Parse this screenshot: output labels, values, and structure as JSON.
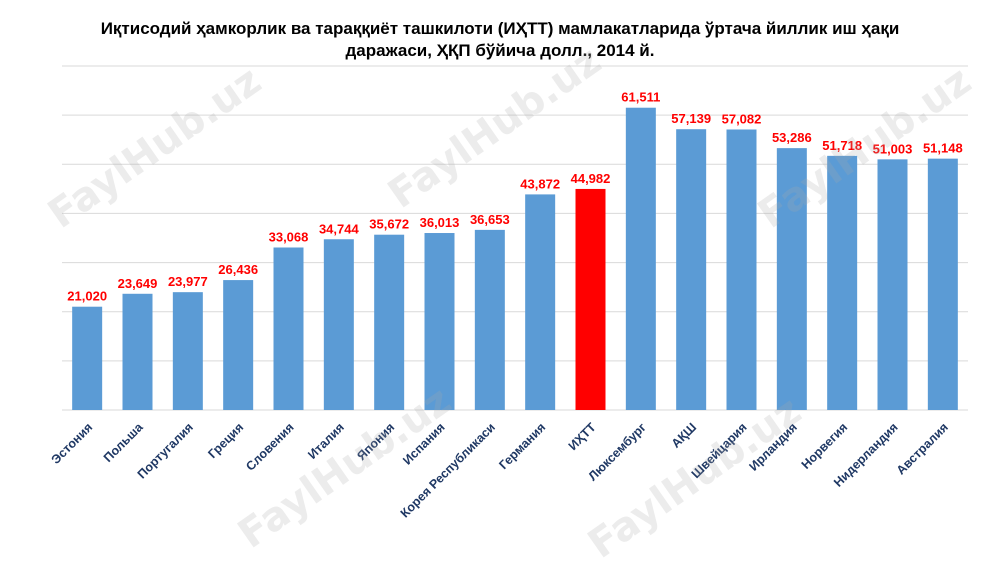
{
  "chart_data": {
    "type": "bar",
    "title": "Иқтисодий ҳамкорлик ва тараққиёт ташкилоти (ИҲТТ) мамлакатларида ўртача йиллик иш ҳақи даражаси, ҲҚП бўйича долл., 2014 й.",
    "title_lines": [
      "Иқтисодий ҳамкорлик ва тараққиёт ташкилоти (ИҲТТ) мамлакатларида ўртача йиллик иш ҳақи",
      "даражаси, ҲҚП бўйича долл., 2014 й."
    ],
    "categories": [
      "Эстония",
      "Польша",
      "Португалия",
      "Греция",
      "Словения",
      "Италия",
      "Япония",
      "Испания",
      "Корея Республикаси",
      "Германия",
      "ИҲТТ",
      "Люксембург",
      "АҚШ",
      "Швейцария",
      "Ирландия",
      "Норвегия",
      "Нидерландия",
      "Австралия"
    ],
    "values": [
      21020,
      23649,
      23977,
      26436,
      33068,
      34744,
      35672,
      36013,
      36653,
      43872,
      44982,
      61511,
      57139,
      57082,
      53286,
      51718,
      51003,
      51148
    ],
    "value_labels": [
      "21,020",
      "23,649",
      "23,977",
      "26,436",
      "33,068",
      "34,744",
      "35,672",
      "36,013",
      "36,653",
      "43,872",
      "44,982",
      "61,511",
      "57,139",
      "57,082",
      "53,286",
      "51,718",
      "51,003",
      "51,148"
    ],
    "highlight_category": "ИҲТТ",
    "ylim": [
      0,
      70000
    ],
    "ytick_step": 10000,
    "grid": true,
    "xlabel": "",
    "ylabel": "",
    "colors": {
      "bar": "#5b9bd5",
      "highlight": "#ff0000",
      "value_label": "#ff0000",
      "category_label": "#1f3864",
      "grid": "#d9d9d9"
    }
  },
  "watermark": "FaylHub.uz"
}
